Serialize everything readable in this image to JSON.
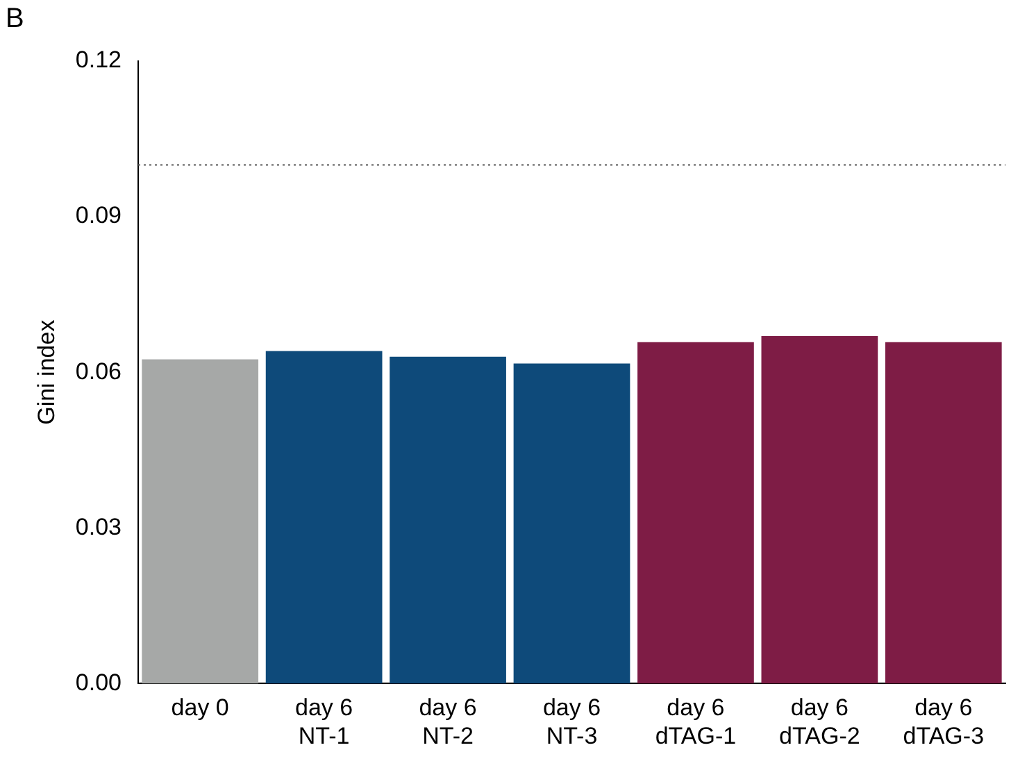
{
  "chart_data": {
    "type": "bar",
    "ylabel": "Gini index",
    "annotations": [
      "B"
    ],
    "categories": [
      "day 0",
      "day 6\nNT-1",
      "day 6\nNT-2",
      "day 6\nNT-3",
      "day 6\ndTAG-1",
      "day 6\ndTAG-2",
      "day 6\ndTAG-3"
    ],
    "values": [
      0.0625,
      0.0641,
      0.063,
      0.0617,
      0.0658,
      0.067,
      0.0658
    ],
    "colors": [
      "#a6a8a7",
      "#0e4a7a",
      "#0e4a7a",
      "#0e4a7a",
      "#7e1c45",
      "#7e1c45",
      "#7e1c45"
    ],
    "ylim": [
      0,
      0.12
    ],
    "yticks": [
      {
        "value": 0,
        "label": "0.00"
      },
      {
        "value": 0.03,
        "label": "0.03"
      },
      {
        "value": 0.06,
        "label": "0.06"
      },
      {
        "value": 0.09,
        "label": "0.09"
      },
      {
        "value": 0.12,
        "label": "0.12"
      }
    ],
    "ref_lines": [
      {
        "axis": "y",
        "value": 0.1,
        "color": "#555555",
        "line_style": "dotted"
      }
    ],
    "grid": false,
    "legend": false
  }
}
